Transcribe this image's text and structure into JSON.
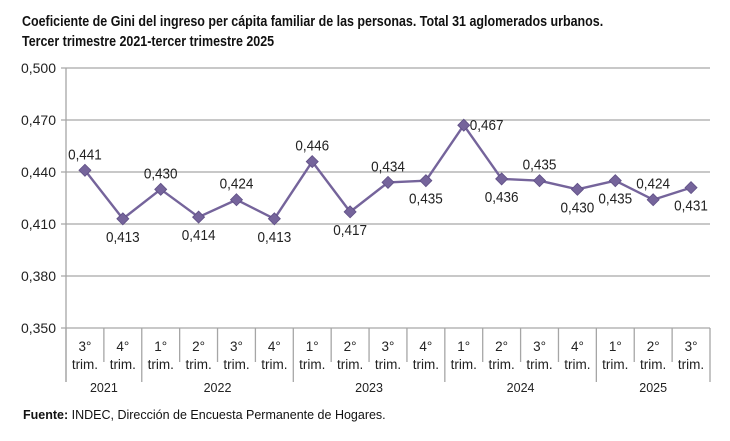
{
  "chart_data": {
    "type": "line",
    "title": "Coeficiente de Gini del ingreso per cápita familiar de las personas. Total 31 aglomerados urbanos.",
    "subtitle": "Tercer trimestre 2021-tercer trimestre 2025",
    "xlabel": "",
    "ylabel": "",
    "ylim": [
      0.35,
      0.5
    ],
    "yticks": [
      "0,350",
      "0,380",
      "0,410",
      "0,440",
      "0,470",
      "0,500"
    ],
    "ytick_values": [
      0.35,
      0.38,
      0.41,
      0.44,
      0.47,
      0.5
    ],
    "grid": true,
    "legend": "none",
    "categories": [
      {
        "quarter": "3°",
        "unit": "trim.",
        "year": "2021"
      },
      {
        "quarter": "4°",
        "unit": "trim.",
        "year": "2021"
      },
      {
        "quarter": "1°",
        "unit": "trim.",
        "year": "2022"
      },
      {
        "quarter": "2°",
        "unit": "trim.",
        "year": "2022"
      },
      {
        "quarter": "3°",
        "unit": "trim.",
        "year": "2022"
      },
      {
        "quarter": "4°",
        "unit": "trim.",
        "year": "2022"
      },
      {
        "quarter": "1°",
        "unit": "trim.",
        "year": "2023"
      },
      {
        "quarter": "2°",
        "unit": "trim.",
        "year": "2023"
      },
      {
        "quarter": "3°",
        "unit": "trim.",
        "year": "2023"
      },
      {
        "quarter": "4°",
        "unit": "trim.",
        "year": "2023"
      },
      {
        "quarter": "1°",
        "unit": "trim.",
        "year": "2024"
      },
      {
        "quarter": "2°",
        "unit": "trim.",
        "year": "2024"
      },
      {
        "quarter": "3°",
        "unit": "trim.",
        "year": "2024"
      },
      {
        "quarter": "4°",
        "unit": "trim.",
        "year": "2024"
      },
      {
        "quarter": "1°",
        "unit": "trim.",
        "year": "2025"
      },
      {
        "quarter": "2°",
        "unit": "trim.",
        "year": "2025"
      },
      {
        "quarter": "3°",
        "unit": "trim.",
        "year": "2025"
      }
    ],
    "years": [
      "2021",
      "2022",
      "2023",
      "2024",
      "2025"
    ],
    "series": [
      {
        "name": "Coeficiente de Gini",
        "color": "#75649b",
        "values": [
          0.441,
          0.413,
          0.43,
          0.414,
          0.424,
          0.413,
          0.446,
          0.417,
          0.434,
          0.435,
          0.467,
          0.436,
          0.435,
          0.43,
          0.435,
          0.424,
          0.431
        ],
        "labels": [
          "0,441",
          "0,413",
          "0,430",
          "0,414",
          "0,424",
          "0,413",
          "0,446",
          "0,417",
          "0,434",
          "0,435",
          "0,467",
          "0,436",
          "0,435",
          "0,430",
          "0,435",
          "0,424",
          "0,431"
        ],
        "label_positions": [
          "above",
          "below",
          "above",
          "below",
          "above",
          "below",
          "above",
          "below",
          "above",
          "below",
          "right",
          "below",
          "above",
          "below",
          "below",
          "above",
          "below"
        ]
      }
    ],
    "colors": {
      "line": "#75649b",
      "marker": "#75649b",
      "grid": "#a6a6a6",
      "axis": "#a6a6a6"
    }
  },
  "footer": {
    "source_label": "Fuente:",
    "source_text": " INDEC, Dirección de Encuesta Permanente de Hogares."
  }
}
